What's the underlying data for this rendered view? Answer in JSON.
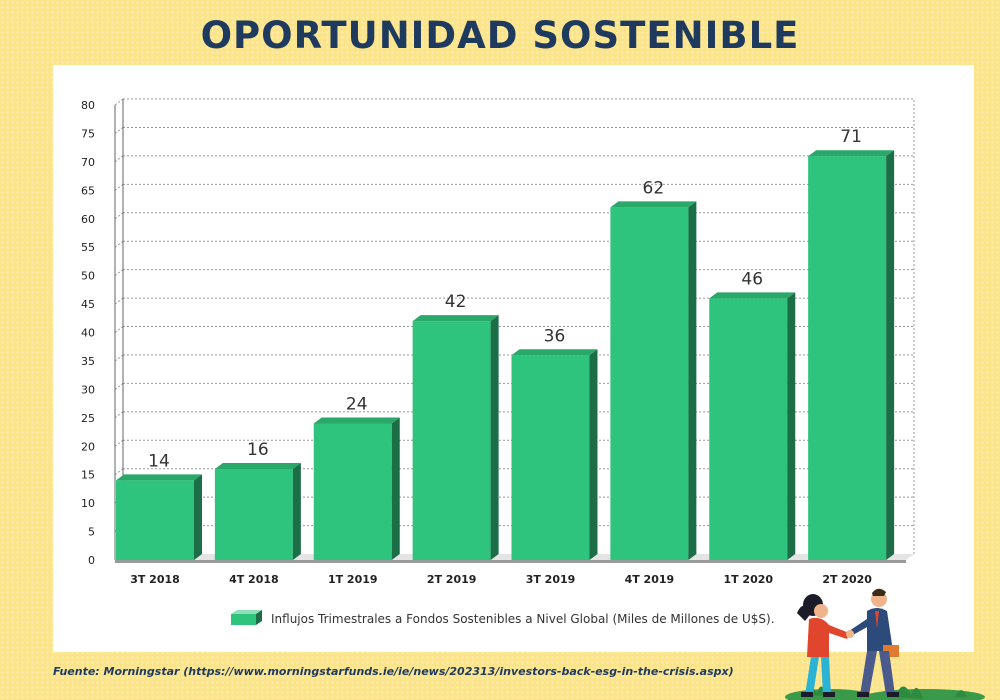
{
  "title": "OPORTUNIDAD SOSTENIBLE",
  "source": "Fuente: Morningstar (https://www.morningstarfunds.ie/ie/news/202313/investors-back-esg-in-the-crisis.aspx)",
  "colors": {
    "background": "#fbe48a",
    "title": "#1f3a5f",
    "bar_front": "#2ec47e",
    "bar_top": "#29a86a",
    "bar_side": "#1c6e47"
  },
  "chart_data": {
    "type": "bar",
    "categories": [
      "3T 2018",
      "4T 2018",
      "1T 2019",
      "2T 2019",
      "3T 2019",
      "4T 2019",
      "1T 2020",
      "2T 2020"
    ],
    "series": [
      {
        "name": "Influjos Trimestrales a Fondos Sostenibles a Nivel Global (Miles de Millones de U$S).",
        "values": [
          14,
          16,
          24,
          42,
          36,
          62,
          46,
          71
        ]
      }
    ],
    "ylim": [
      0,
      80
    ],
    "yticks": [
      0,
      5,
      10,
      15,
      20,
      25,
      30,
      35,
      40,
      45,
      50,
      55,
      60,
      65,
      70,
      75,
      80
    ],
    "grid": "horizontal dashed",
    "legend_position": "bottom",
    "data_labels": true,
    "style": "3d"
  }
}
